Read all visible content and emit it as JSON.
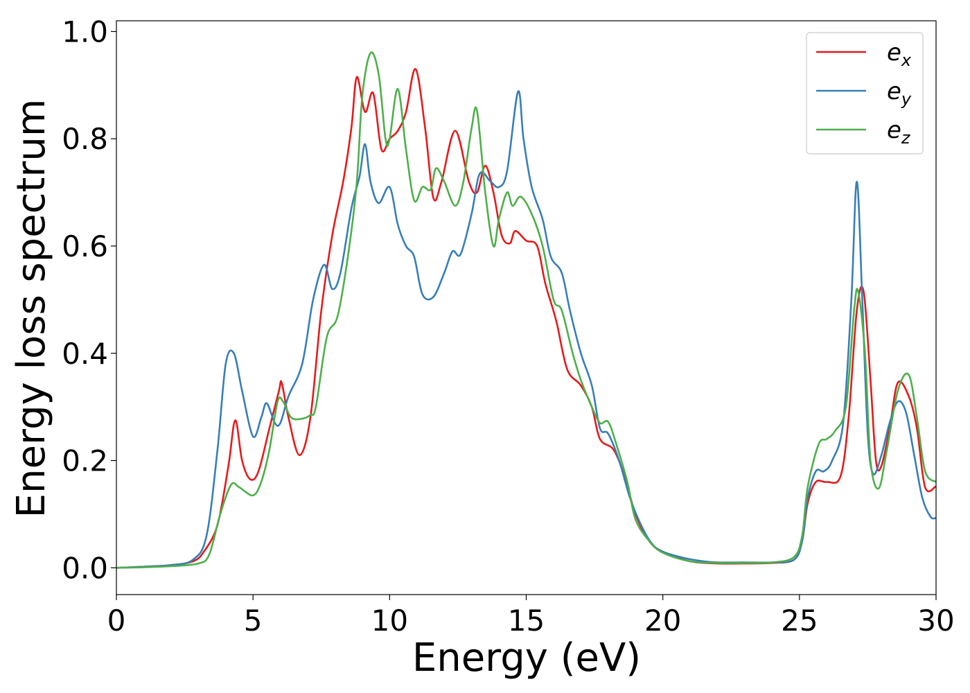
{
  "chart_data": {
    "type": "line",
    "xlabel": "Energy (eV)",
    "ylabel": "Energy loss spectrum",
    "xlim": [
      0,
      30
    ],
    "ylim": [
      -0.05,
      1.02
    ],
    "xticks": [
      0,
      5,
      10,
      15,
      20,
      25,
      30
    ],
    "yticks": [
      0.0,
      0.2,
      0.4,
      0.6,
      0.8,
      1.0
    ],
    "xtick_labels": [
      "0",
      "5",
      "10",
      "15",
      "20",
      "25",
      "30"
    ],
    "ytick_labels": [
      "0.0",
      "0.2",
      "0.4",
      "0.6",
      "0.8",
      "1.0"
    ],
    "grid": false,
    "legend_position": "top-right",
    "series": [
      {
        "name": "e_x",
        "label_base": "e",
        "label_sub": "x",
        "color": "#e41a1c",
        "points": [
          [
            0,
            0
          ],
          [
            1,
            0.002
          ],
          [
            2,
            0.005
          ],
          [
            2.8,
            0.012
          ],
          [
            3.2,
            0.03
          ],
          [
            3.7,
            0.08
          ],
          [
            4.1,
            0.19
          ],
          [
            4.35,
            0.275
          ],
          [
            4.6,
            0.2
          ],
          [
            4.9,
            0.165
          ],
          [
            5.2,
            0.18
          ],
          [
            5.6,
            0.26
          ],
          [
            5.95,
            0.33
          ],
          [
            6.05,
            0.345
          ],
          [
            6.3,
            0.28
          ],
          [
            6.7,
            0.21
          ],
          [
            7.1,
            0.28
          ],
          [
            7.5,
            0.48
          ],
          [
            7.9,
            0.62
          ],
          [
            8.3,
            0.72
          ],
          [
            8.6,
            0.82
          ],
          [
            8.8,
            0.915
          ],
          [
            9.1,
            0.85
          ],
          [
            9.4,
            0.885
          ],
          [
            9.7,
            0.78
          ],
          [
            10.0,
            0.8
          ],
          [
            10.3,
            0.815
          ],
          [
            10.6,
            0.85
          ],
          [
            10.95,
            0.93
          ],
          [
            11.3,
            0.82
          ],
          [
            11.6,
            0.69
          ],
          [
            11.9,
            0.72
          ],
          [
            12.4,
            0.815
          ],
          [
            12.9,
            0.72
          ],
          [
            13.2,
            0.7
          ],
          [
            13.5,
            0.75
          ],
          [
            13.8,
            0.7
          ],
          [
            14.1,
            0.62
          ],
          [
            14.4,
            0.605
          ],
          [
            14.6,
            0.628
          ],
          [
            15.0,
            0.61
          ],
          [
            15.4,
            0.6
          ],
          [
            15.7,
            0.53
          ],
          [
            16.1,
            0.46
          ],
          [
            16.5,
            0.37
          ],
          [
            17.0,
            0.34
          ],
          [
            17.4,
            0.3
          ],
          [
            17.7,
            0.24
          ],
          [
            18.2,
            0.22
          ],
          [
            18.6,
            0.17
          ],
          [
            19.0,
            0.1
          ],
          [
            19.5,
            0.05
          ],
          [
            20.0,
            0.03
          ],
          [
            21,
            0.012
          ],
          [
            22,
            0.008
          ],
          [
            23,
            0.008
          ],
          [
            24,
            0.009
          ],
          [
            24.8,
            0.015
          ],
          [
            25.1,
            0.05
          ],
          [
            25.3,
            0.12
          ],
          [
            25.6,
            0.16
          ],
          [
            26.0,
            0.16
          ],
          [
            26.5,
            0.17
          ],
          [
            26.8,
            0.28
          ],
          [
            27.1,
            0.48
          ],
          [
            27.35,
            0.515
          ],
          [
            27.6,
            0.35
          ],
          [
            27.8,
            0.2
          ],
          [
            28.0,
            0.19
          ],
          [
            28.3,
            0.26
          ],
          [
            28.6,
            0.345
          ],
          [
            29.0,
            0.32
          ],
          [
            29.3,
            0.26
          ],
          [
            29.6,
            0.15
          ],
          [
            30,
            0.152
          ]
        ]
      },
      {
        "name": "e_y",
        "label_base": "e",
        "label_sub": "y",
        "color": "#377eb8",
        "points": [
          [
            0,
            0
          ],
          [
            1,
            0.002
          ],
          [
            2,
            0.005
          ],
          [
            2.8,
            0.015
          ],
          [
            3.3,
            0.06
          ],
          [
            3.7,
            0.22
          ],
          [
            4.0,
            0.38
          ],
          [
            4.3,
            0.4
          ],
          [
            4.6,
            0.33
          ],
          [
            5.0,
            0.245
          ],
          [
            5.3,
            0.28
          ],
          [
            5.5,
            0.307
          ],
          [
            5.8,
            0.27
          ],
          [
            6.0,
            0.27
          ],
          [
            6.3,
            0.32
          ],
          [
            6.8,
            0.38
          ],
          [
            7.2,
            0.5
          ],
          [
            7.6,
            0.565
          ],
          [
            7.9,
            0.52
          ],
          [
            8.2,
            0.55
          ],
          [
            8.6,
            0.67
          ],
          [
            8.9,
            0.73
          ],
          [
            9.1,
            0.79
          ],
          [
            9.3,
            0.72
          ],
          [
            9.6,
            0.68
          ],
          [
            10.0,
            0.71
          ],
          [
            10.3,
            0.64
          ],
          [
            10.6,
            0.6
          ],
          [
            10.9,
            0.58
          ],
          [
            11.2,
            0.51
          ],
          [
            11.6,
            0.505
          ],
          [
            12.0,
            0.55
          ],
          [
            12.3,
            0.59
          ],
          [
            12.6,
            0.585
          ],
          [
            13.0,
            0.66
          ],
          [
            13.3,
            0.735
          ],
          [
            13.7,
            0.72
          ],
          [
            14.0,
            0.71
          ],
          [
            14.3,
            0.74
          ],
          [
            14.7,
            0.888
          ],
          [
            14.9,
            0.8
          ],
          [
            15.2,
            0.71
          ],
          [
            15.6,
            0.65
          ],
          [
            15.9,
            0.58
          ],
          [
            16.3,
            0.55
          ],
          [
            16.6,
            0.48
          ],
          [
            17.0,
            0.4
          ],
          [
            17.4,
            0.34
          ],
          [
            17.7,
            0.26
          ],
          [
            18.0,
            0.25
          ],
          [
            18.4,
            0.2
          ],
          [
            18.8,
            0.13
          ],
          [
            19.2,
            0.08
          ],
          [
            19.6,
            0.045
          ],
          [
            20.0,
            0.03
          ],
          [
            20.8,
            0.018
          ],
          [
            21.5,
            0.012
          ],
          [
            22,
            0.01
          ],
          [
            23,
            0.01
          ],
          [
            24,
            0.01
          ],
          [
            24.8,
            0.015
          ],
          [
            25.1,
            0.05
          ],
          [
            25.3,
            0.13
          ],
          [
            25.6,
            0.18
          ],
          [
            25.9,
            0.18
          ],
          [
            26.2,
            0.2
          ],
          [
            26.6,
            0.27
          ],
          [
            26.9,
            0.5
          ],
          [
            27.1,
            0.72
          ],
          [
            27.3,
            0.5
          ],
          [
            27.5,
            0.25
          ],
          [
            27.7,
            0.175
          ],
          [
            28.0,
            0.21
          ],
          [
            28.3,
            0.27
          ],
          [
            28.6,
            0.31
          ],
          [
            28.9,
            0.29
          ],
          [
            29.2,
            0.21
          ],
          [
            29.5,
            0.13
          ],
          [
            29.8,
            0.095
          ],
          [
            30,
            0.093
          ]
        ]
      },
      {
        "name": "e_z",
        "label_base": "e",
        "label_sub": "z",
        "color": "#4daf4a",
        "points": [
          [
            0,
            0
          ],
          [
            1,
            0.001
          ],
          [
            2,
            0.003
          ],
          [
            3.0,
            0.008
          ],
          [
            3.4,
            0.025
          ],
          [
            3.8,
            0.1
          ],
          [
            4.2,
            0.155
          ],
          [
            4.5,
            0.15
          ],
          [
            5.0,
            0.135
          ],
          [
            5.3,
            0.16
          ],
          [
            5.6,
            0.22
          ],
          [
            5.9,
            0.31
          ],
          [
            6.1,
            0.31
          ],
          [
            6.4,
            0.28
          ],
          [
            6.8,
            0.278
          ],
          [
            7.1,
            0.285
          ],
          [
            7.3,
            0.3
          ],
          [
            7.7,
            0.43
          ],
          [
            8.1,
            0.47
          ],
          [
            8.5,
            0.59
          ],
          [
            8.8,
            0.72
          ],
          [
            9.0,
            0.88
          ],
          [
            9.3,
            0.96
          ],
          [
            9.6,
            0.92
          ],
          [
            9.85,
            0.8
          ],
          [
            10.0,
            0.8
          ],
          [
            10.3,
            0.893
          ],
          [
            10.6,
            0.78
          ],
          [
            10.9,
            0.685
          ],
          [
            11.2,
            0.71
          ],
          [
            11.5,
            0.705
          ],
          [
            11.7,
            0.745
          ],
          [
            12.0,
            0.72
          ],
          [
            12.4,
            0.675
          ],
          [
            12.7,
            0.72
          ],
          [
            13.0,
            0.82
          ],
          [
            13.2,
            0.852
          ],
          [
            13.5,
            0.7
          ],
          [
            13.8,
            0.6
          ],
          [
            14.0,
            0.65
          ],
          [
            14.3,
            0.7
          ],
          [
            14.5,
            0.675
          ],
          [
            14.8,
            0.692
          ],
          [
            15.2,
            0.66
          ],
          [
            15.6,
            0.6
          ],
          [
            16.0,
            0.5
          ],
          [
            16.3,
            0.48
          ],
          [
            16.7,
            0.4
          ],
          [
            17.0,
            0.35
          ],
          [
            17.4,
            0.3
          ],
          [
            17.7,
            0.27
          ],
          [
            18.0,
            0.272
          ],
          [
            18.3,
            0.23
          ],
          [
            18.7,
            0.16
          ],
          [
            19.0,
            0.09
          ],
          [
            19.5,
            0.05
          ],
          [
            20.0,
            0.028
          ],
          [
            21,
            0.012
          ],
          [
            22,
            0.009
          ],
          [
            23,
            0.009
          ],
          [
            24,
            0.01
          ],
          [
            24.8,
            0.02
          ],
          [
            25.1,
            0.06
          ],
          [
            25.3,
            0.15
          ],
          [
            25.7,
            0.23
          ],
          [
            26.0,
            0.24
          ],
          [
            26.3,
            0.255
          ],
          [
            26.7,
            0.3
          ],
          [
            27.0,
            0.48
          ],
          [
            27.15,
            0.515
          ],
          [
            27.4,
            0.4
          ],
          [
            27.6,
            0.2
          ],
          [
            27.9,
            0.148
          ],
          [
            28.2,
            0.22
          ],
          [
            28.6,
            0.33
          ],
          [
            29.0,
            0.36
          ],
          [
            29.3,
            0.28
          ],
          [
            29.6,
            0.18
          ],
          [
            30,
            0.16
          ]
        ]
      }
    ]
  }
}
